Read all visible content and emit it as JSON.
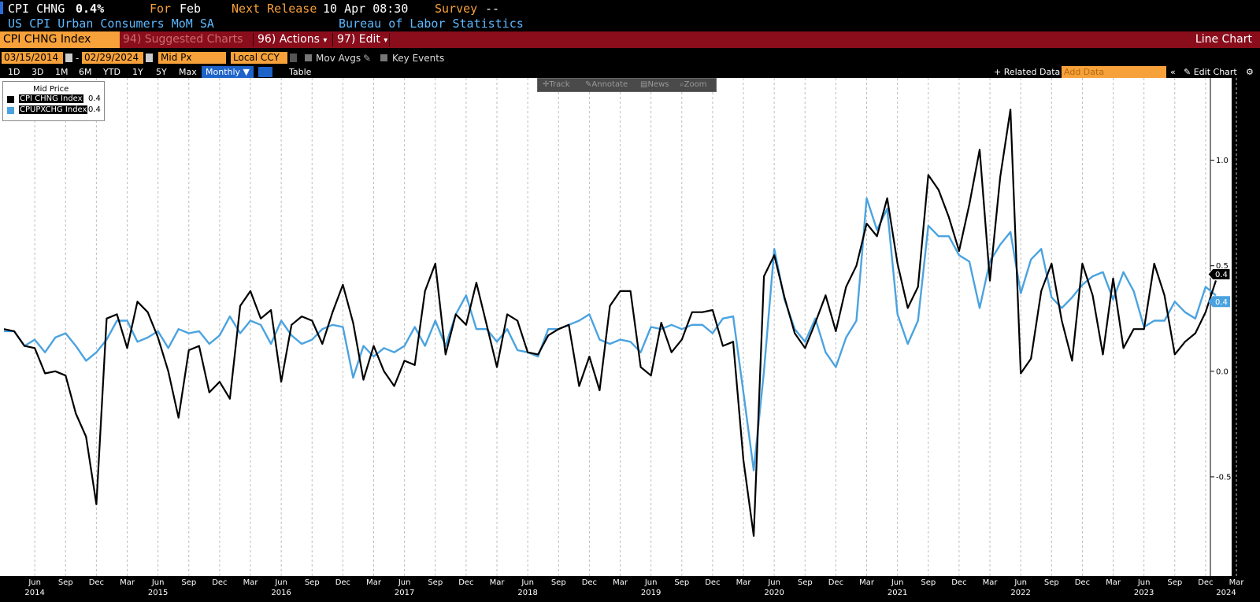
{
  "header": {
    "ticker": "CPI CHNG",
    "value": "0.4%",
    "for_label": "For",
    "for_value": "Feb",
    "next_release_label": "Next Release",
    "next_release_value": "10 Apr 08:30",
    "survey_label": "Survey",
    "survey_value": "--",
    "description": "US CPI Urban Consumers MoM SA",
    "source": "Bureau of Labor Statistics"
  },
  "toolbar": {
    "security": "CPI CHNG Index",
    "suggested": "94) Suggested Charts",
    "actions": "96) Actions",
    "actions_arrow": "▾",
    "edit": "97) Edit",
    "edit_arrow": "▾",
    "chart_type": "Line Chart"
  },
  "range": {
    "start_date": "03/15/2014",
    "dash": "-",
    "end_date": "02/29/2024",
    "price_field": "Mid Px",
    "currency": "Local CCY",
    "mov_avgs": "Mov Avgs",
    "key_events": "Key Events"
  },
  "periods": [
    "1D",
    "3D",
    "1M",
    "6M",
    "YTD",
    "1Y",
    "5Y",
    "Max"
  ],
  "period_selected": "Monthly ▼",
  "table_label": "Table",
  "related_data": "+ Related Data",
  "add_data_placeholder": "Add Data",
  "collapse_label": "«",
  "edit_chart": "Edit Chart",
  "chart_tools": [
    "Track",
    "Annotate",
    "News",
    "Zoom"
  ],
  "legend": {
    "title": "Mid Price",
    "items": [
      {
        "name": "CPI CHNG Index",
        "value": "0.4",
        "color": "#000000"
      },
      {
        "name": "CPUPXCHG Index",
        "value": "0.4",
        "color": "#4aa3e0"
      }
    ]
  },
  "colors": {
    "accent_orange": "#f7a13a",
    "bar_red": "#8a0d1c",
    "series_headline": "#000000",
    "series_core": "#4aa3e0"
  },
  "chart_data": {
    "type": "line",
    "x_start": "2014-03",
    "x_end": "2024-02",
    "frequency": "monthly",
    "yticks": [
      -0.5,
      0.0,
      0.5,
      1.0
    ],
    "ytick_labels": [
      "-0.5",
      "0.0",
      "0.5",
      "1.0"
    ],
    "ylim": [
      -0.97,
      1.39
    ],
    "grid": "vertical dashed",
    "legend_position": "top-left",
    "last_value_labels": [
      "0.4",
      "0.4"
    ],
    "xaxis_months": [
      {
        "label": "Jun",
        "date": "2014-06"
      },
      {
        "label": "Sep",
        "date": "2014-09"
      },
      {
        "label": "Dec",
        "date": "2014-12"
      },
      {
        "label": "Mar",
        "date": "2015-03"
      },
      {
        "label": "Jun",
        "date": "2015-06"
      },
      {
        "label": "Sep",
        "date": "2015-09"
      },
      {
        "label": "Dec",
        "date": "2015-12"
      },
      {
        "label": "Mar",
        "date": "2016-03"
      },
      {
        "label": "Jun",
        "date": "2016-06"
      },
      {
        "label": "Sep",
        "date": "2016-09"
      },
      {
        "label": "Dec",
        "date": "2016-12"
      },
      {
        "label": "Mar",
        "date": "2017-03"
      },
      {
        "label": "Jun",
        "date": "2017-06"
      },
      {
        "label": "Sep",
        "date": "2017-09"
      },
      {
        "label": "Dec",
        "date": "2017-12"
      },
      {
        "label": "Mar",
        "date": "2018-03"
      },
      {
        "label": "Jun",
        "date": "2018-06"
      },
      {
        "label": "Sep",
        "date": "2018-09"
      },
      {
        "label": "Dec",
        "date": "2018-12"
      },
      {
        "label": "Mar",
        "date": "2019-03"
      },
      {
        "label": "Jun",
        "date": "2019-06"
      },
      {
        "label": "Sep",
        "date": "2019-09"
      },
      {
        "label": "Dec",
        "date": "2019-12"
      },
      {
        "label": "Mar",
        "date": "2020-03"
      },
      {
        "label": "Jun",
        "date": "2020-06"
      },
      {
        "label": "Sep",
        "date": "2020-09"
      },
      {
        "label": "Dec",
        "date": "2020-12"
      },
      {
        "label": "Mar",
        "date": "2021-03"
      },
      {
        "label": "Jun",
        "date": "2021-06"
      },
      {
        "label": "Sep",
        "date": "2021-09"
      },
      {
        "label": "Dec",
        "date": "2021-12"
      },
      {
        "label": "Mar",
        "date": "2022-03"
      },
      {
        "label": "Jun",
        "date": "2022-06"
      },
      {
        "label": "Sep",
        "date": "2022-09"
      },
      {
        "label": "Dec",
        "date": "2022-12"
      },
      {
        "label": "Mar",
        "date": "2023-03"
      },
      {
        "label": "Jun",
        "date": "2023-06"
      },
      {
        "label": "Sep",
        "date": "2023-09"
      },
      {
        "label": "Dec",
        "date": "2023-12"
      },
      {
        "label": "Mar",
        "date": "2024-03"
      }
    ],
    "xaxis_years": [
      {
        "label": "2014",
        "date": "2014-06"
      },
      {
        "label": "2015",
        "date": "2015-06"
      },
      {
        "label": "2016",
        "date": "2016-06"
      },
      {
        "label": "2017",
        "date": "2017-06"
      },
      {
        "label": "2018",
        "date": "2018-06"
      },
      {
        "label": "2019",
        "date": "2019-06"
      },
      {
        "label": "2020",
        "date": "2020-06"
      },
      {
        "label": "2021",
        "date": "2021-06"
      },
      {
        "label": "2022",
        "date": "2022-06"
      },
      {
        "label": "2023",
        "date": "2023-06"
      },
      {
        "label": "2024",
        "date": "2024-02"
      }
    ],
    "series": [
      {
        "name": "CPI CHNG Index",
        "color": "#000000",
        "values": [
          0.2,
          0.19,
          0.12,
          0.11,
          -0.01,
          0.0,
          -0.02,
          -0.2,
          -0.31,
          -0.63,
          0.25,
          0.27,
          0.11,
          0.33,
          0.28,
          0.16,
          0.0,
          -0.22,
          0.1,
          0.12,
          -0.1,
          -0.05,
          -0.13,
          0.31,
          0.38,
          0.25,
          0.29,
          -0.05,
          0.22,
          0.26,
          0.24,
          0.13,
          0.28,
          0.41,
          0.23,
          -0.04,
          0.12,
          0.0,
          -0.07,
          0.05,
          0.03,
          0.38,
          0.51,
          0.08,
          0.27,
          0.22,
          0.42,
          0.22,
          0.02,
          0.27,
          0.24,
          0.09,
          0.08,
          0.17,
          0.2,
          0.22,
          -0.07,
          0.07,
          -0.09,
          0.31,
          0.38,
          0.38,
          0.02,
          -0.02,
          0.23,
          0.09,
          0.15,
          0.28,
          0.28,
          0.29,
          0.12,
          0.14,
          -0.42,
          -0.78,
          0.45,
          0.55,
          0.35,
          0.18,
          0.11,
          0.23,
          0.36,
          0.19,
          0.4,
          0.5,
          0.7,
          0.64,
          0.82,
          0.51,
          0.3,
          0.4,
          0.93,
          0.86,
          0.73,
          0.57,
          0.79,
          1.05,
          0.43,
          0.92,
          1.24,
          -0.01,
          0.06,
          0.38,
          0.51,
          0.24,
          0.05,
          0.51,
          0.36,
          0.08,
          0.44,
          0.11,
          0.2,
          0.2,
          0.51,
          0.36,
          0.08,
          0.14,
          0.18,
          0.28,
          0.43
        ]
      },
      {
        "name": "CPUPXCHG Index",
        "color": "#4aa3e0",
        "values": [
          0.19,
          0.19,
          0.12,
          0.15,
          0.09,
          0.16,
          0.18,
          0.12,
          0.05,
          0.09,
          0.15,
          0.24,
          0.24,
          0.14,
          0.16,
          0.19,
          0.11,
          0.2,
          0.18,
          0.19,
          0.13,
          0.17,
          0.26,
          0.18,
          0.24,
          0.22,
          0.13,
          0.24,
          0.17,
          0.13,
          0.15,
          0.2,
          0.22,
          0.21,
          -0.03,
          0.12,
          0.07,
          0.11,
          0.09,
          0.12,
          0.21,
          0.12,
          0.24,
          0.12,
          0.27,
          0.36,
          0.2,
          0.2,
          0.14,
          0.2,
          0.1,
          0.09,
          0.07,
          0.2,
          0.2,
          0.22,
          0.24,
          0.27,
          0.15,
          0.13,
          0.15,
          0.14,
          0.09,
          0.21,
          0.2,
          0.22,
          0.2,
          0.22,
          0.22,
          0.18,
          0.25,
          0.26,
          -0.1,
          -0.47,
          0.0,
          0.58,
          0.34,
          0.2,
          0.14,
          0.25,
          0.09,
          0.02,
          0.16,
          0.24,
          0.82,
          0.67,
          0.77,
          0.27,
          0.13,
          0.24,
          0.69,
          0.64,
          0.64,
          0.55,
          0.52,
          0.3,
          0.52,
          0.6,
          0.66,
          0.37,
          0.53,
          0.58,
          0.35,
          0.3,
          0.35,
          0.41,
          0.45,
          0.47,
          0.34,
          0.47,
          0.38,
          0.21,
          0.24,
          0.24,
          0.33,
          0.28,
          0.25,
          0.4,
          0.36
        ]
      }
    ]
  }
}
